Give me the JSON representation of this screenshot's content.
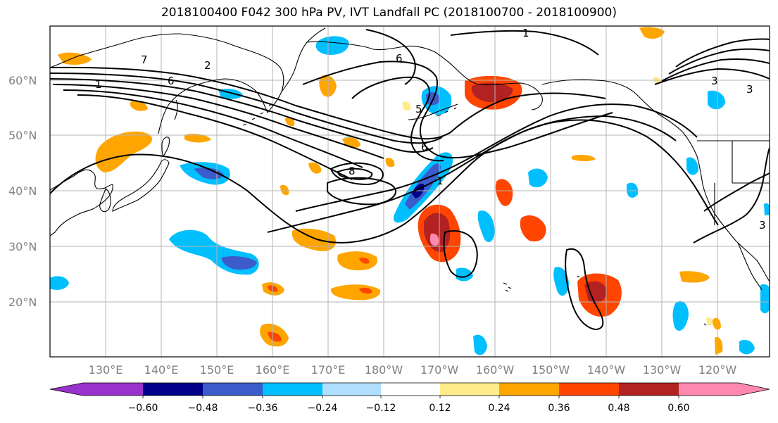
{
  "title": "2018100400 F042 300 hPa PV, IVT Landfall PC (2018100700 - 2018100900)",
  "map": {
    "projection": "equirectangular",
    "lon_range": [
      120,
      255
    ],
    "lat_range": [
      10,
      70
    ],
    "lat_ticks": [
      "20°N",
      "30°N",
      "40°N",
      "50°N",
      "60°N"
    ],
    "lon_ticks": [
      "130°E",
      "140°E",
      "150°E",
      "160°E",
      "170°E",
      "180°W",
      "170°W",
      "160°W",
      "150°W",
      "140°W",
      "130°W",
      "120°W"
    ],
    "gridlines": true,
    "coastline_color": "#000000",
    "contour_color": "#000000"
  },
  "contour_labels": [
    "1",
    "2",
    "3",
    "5",
    "6",
    "7",
    "8"
  ],
  "colorbar": {
    "ticks": [
      "−0.60",
      "−0.48",
      "−0.36",
      "−0.24",
      "−0.12",
      "0.12",
      "0.24",
      "0.36",
      "0.48",
      "0.60"
    ],
    "colors": [
      "#9932cc",
      "#00008b",
      "#3c5ccb",
      "#00bfff",
      "#b0e0ff",
      "#ffffff",
      "#ffeb8a",
      "#ffa500",
      "#ff4500",
      "#b22222",
      "#ff88b0"
    ],
    "extend": "both"
  }
}
